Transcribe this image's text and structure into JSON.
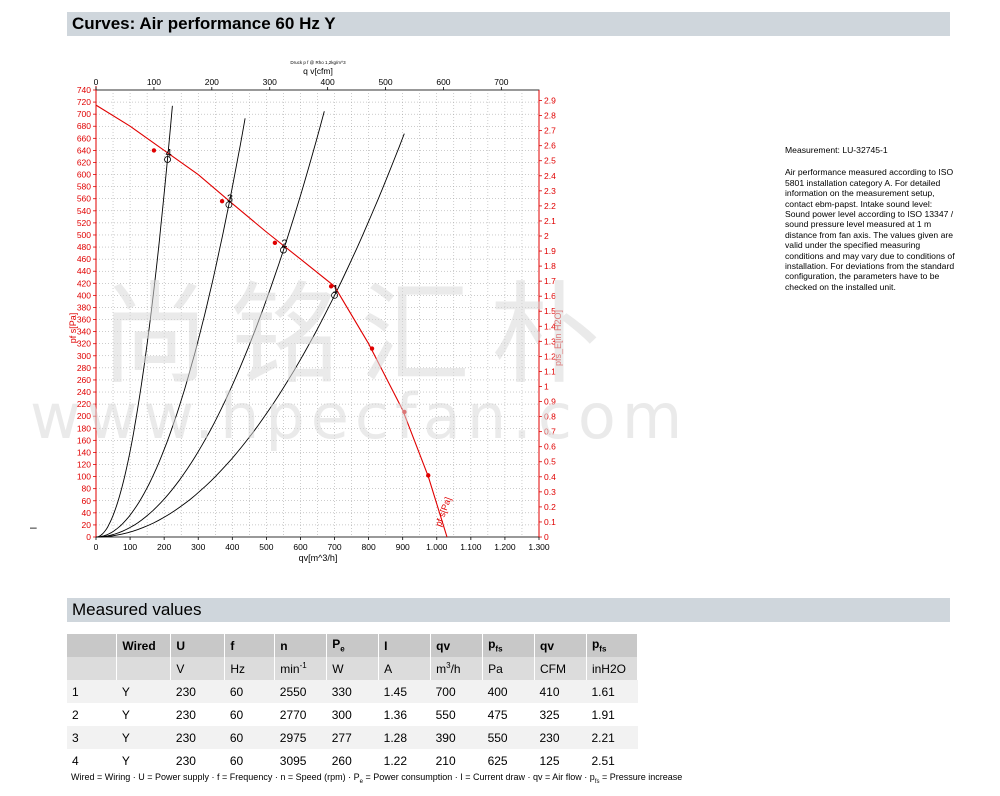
{
  "headers": {
    "curves": "Curves: Air performance 60 Hz Y",
    "measured": "Measured values"
  },
  "chart_data": {
    "type": "line",
    "top_caption": "Druck p f @ Rho 1,2kg/m^3",
    "x_bottom": {
      "label": "qv[m^3/h]",
      "range": [
        0,
        1300
      ],
      "ticks": [
        0,
        100,
        200,
        300,
        400,
        500,
        600,
        700,
        800,
        900,
        1000,
        1100,
        1200,
        1300
      ],
      "tick_labels": [
        "0",
        "100",
        "200",
        "300",
        "400",
        "500",
        "600",
        "700",
        "800",
        "900",
        "1.000",
        "1.100",
        "1.200",
        "1.300"
      ]
    },
    "x_top": {
      "label": "q v[cfm]",
      "range": [
        0,
        765
      ],
      "ticks": [
        0,
        100,
        200,
        300,
        400,
        500,
        600,
        700
      ]
    },
    "y_left": {
      "label": "pf s[Pa]",
      "range": [
        0,
        740
      ],
      "ticks_step": 20
    },
    "y_right": {
      "label": "pfs_E[in H2O]",
      "range": [
        0,
        2.97
      ],
      "ticks_step": 0.1
    },
    "grid": true,
    "fan_curve": {
      "label": "pf s[Pa]",
      "color": "#e00000",
      "points": [
        [
          0,
          715
        ],
        [
          100,
          680
        ],
        [
          200,
          640
        ],
        [
          300,
          600
        ],
        [
          400,
          552
        ],
        [
          500,
          505
        ],
        [
          600,
          460
        ],
        [
          700,
          415
        ],
        [
          800,
          320
        ],
        [
          900,
          210
        ],
        [
          975,
          100
        ],
        [
          1030,
          0
        ]
      ],
      "markers": [
        [
          170,
          640
        ],
        [
          370,
          556
        ],
        [
          525,
          487
        ],
        [
          690,
          415
        ],
        [
          810,
          312
        ],
        [
          905,
          207
        ],
        [
          975,
          102
        ]
      ]
    },
    "system_curves": [
      {
        "label": "1",
        "k": 0.000816,
        "qmax": 920
      },
      {
        "label": "2",
        "k": 0.00157,
        "qmax": 670
      },
      {
        "label": "3",
        "k": 0.00362,
        "qmax": 445
      },
      {
        "label": "4",
        "k": 0.0142,
        "qmax": 228
      }
    ],
    "operating_points": [
      {
        "label": "1",
        "qv": 700,
        "pfs": 400
      },
      {
        "label": "2",
        "qv": 550,
        "pfs": 475
      },
      {
        "label": "3",
        "qv": 390,
        "pfs": 550
      },
      {
        "label": "4",
        "qv": 210,
        "pfs": 625
      }
    ]
  },
  "notes": {
    "measurement": "Measurement: LU-32745-1",
    "text": "Air performance measured according to ISO 5801 installation category A. For detailed information on the measurement setup, contact ebm-papst. Intake sound level: Sound power level according to ISO 13347 / sound pressure level measured at 1 m distance from fan axis. The values given are valid under the specified measuring conditions and may vary due to conditions of installation. For deviations from the standard configuration, the parameters have to be checked on the installed unit."
  },
  "table": {
    "header_symbols": [
      "",
      "Wired",
      "U",
      "f",
      "n",
      "P_e",
      "I",
      "qv",
      "p_fs",
      "qv",
      "p_fs"
    ],
    "units": [
      "",
      "",
      "V",
      "Hz",
      "min-1",
      "W",
      "A",
      "m3/h",
      "Pa",
      "CFM",
      "inH2O"
    ],
    "rows": [
      [
        "1",
        "Y",
        "230",
        "60",
        "2550",
        "330",
        "1.45",
        "700",
        "400",
        "410",
        "1.61"
      ],
      [
        "2",
        "Y",
        "230",
        "60",
        "2770",
        "300",
        "1.36",
        "550",
        "475",
        "325",
        "1.91"
      ],
      [
        "3",
        "Y",
        "230",
        "60",
        "2975",
        "277",
        "1.28",
        "390",
        "550",
        "230",
        "2.21"
      ],
      [
        "4",
        "Y",
        "230",
        "60",
        "3095",
        "260",
        "1.22",
        "210",
        "625",
        "125",
        "2.51"
      ]
    ]
  },
  "legend": "Wired = Wiring · U = Power supply · f = Frequency · n = Speed (rpm) · Pe = Power consumption · I = Current draw · qv = Air flow · pfs = Pressure increase",
  "watermark": {
    "cn": "尚铭汇朴",
    "url": "www.hpecfan.com"
  }
}
